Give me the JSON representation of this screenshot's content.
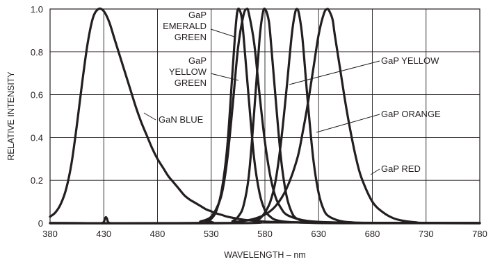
{
  "chart_data": {
    "type": "line",
    "title": "",
    "xlabel": "WAVELENGTH – nm",
    "ylabel": "RELATIVE INTENSITY",
    "xlim": [
      380,
      780
    ],
    "ylim": [
      0,
      1.0
    ],
    "x_ticks": [
      380,
      430,
      480,
      530,
      580,
      630,
      680,
      730,
      780
    ],
    "x_tick_labels": [
      "380",
      "430",
      "480",
      "530",
      "580",
      "630",
      "680",
      "730",
      "780"
    ],
    "y_ticks": [
      0,
      0.2,
      0.4,
      0.6,
      0.8,
      1.0
    ],
    "y_tick_labels": [
      "0",
      "0.2",
      "0.4",
      "0.6",
      "0.8",
      "1.0"
    ],
    "grid": true,
    "legend": "none",
    "series": [
      {
        "name": "GaN BLUE",
        "x": [
          380,
          385,
          390,
          395,
          400,
          405,
          410,
          415,
          420,
          425,
          430,
          435,
          440,
          445,
          450,
          455,
          460,
          465,
          470,
          475,
          480,
          485,
          490,
          495,
          500,
          505,
          510,
          515,
          520,
          525,
          530,
          535,
          540,
          545,
          550,
          555,
          560,
          570,
          580,
          600,
          650,
          700,
          780
        ],
        "y": [
          0.03,
          0.05,
          0.09,
          0.16,
          0.28,
          0.46,
          0.66,
          0.84,
          0.96,
          1.0,
          0.99,
          0.94,
          0.86,
          0.78,
          0.7,
          0.62,
          0.54,
          0.47,
          0.41,
          0.35,
          0.3,
          0.26,
          0.22,
          0.19,
          0.16,
          0.13,
          0.11,
          0.095,
          0.08,
          0.065,
          0.055,
          0.045,
          0.038,
          0.03,
          0.025,
          0.02,
          0.016,
          0.011,
          0.007,
          0.004,
          0.002,
          0.001,
          0.0
        ]
      },
      {
        "name": "GaP EMERALD GREEN",
        "x": [
          380,
          520,
          525,
          530,
          535,
          540,
          545,
          550,
          553,
          555,
          558,
          560,
          565,
          570,
          575,
          580,
          585,
          590,
          600,
          620,
          650,
          780
        ],
        "y": [
          0,
          0,
          0.01,
          0.02,
          0.06,
          0.16,
          0.36,
          0.72,
          0.93,
          1.0,
          0.97,
          0.88,
          0.58,
          0.3,
          0.14,
          0.06,
          0.03,
          0.015,
          0.006,
          0.002,
          0,
          0
        ]
      },
      {
        "name": "GaP YELLOW GREEN",
        "x": [
          380,
          510,
          520,
          525,
          530,
          535,
          540,
          545,
          550,
          555,
          560,
          563,
          565,
          570,
          575,
          580,
          585,
          590,
          595,
          600,
          610,
          620,
          640,
          680,
          780
        ],
        "y": [
          0,
          0,
          0.008,
          0.015,
          0.03,
          0.07,
          0.14,
          0.3,
          0.55,
          0.82,
          0.97,
          1.0,
          0.98,
          0.84,
          0.6,
          0.38,
          0.22,
          0.12,
          0.07,
          0.04,
          0.02,
          0.01,
          0.004,
          0.001,
          0
        ]
      },
      {
        "name": "GaP YELLOW",
        "x": [
          380,
          540,
          550,
          555,
          560,
          565,
          570,
          575,
          578,
          580,
          583,
          585,
          590,
          595,
          600,
          605,
          610,
          620,
          630,
          650,
          680,
          780
        ],
        "y": [
          0,
          0,
          0.01,
          0.03,
          0.08,
          0.22,
          0.52,
          0.86,
          0.98,
          1.0,
          0.96,
          0.88,
          0.58,
          0.3,
          0.13,
          0.05,
          0.02,
          0.006,
          0.002,
          0,
          0,
          0
        ]
      },
      {
        "name": "GaP ORANGE",
        "x": [
          380,
          560,
          570,
          575,
          580,
          585,
          590,
          595,
          600,
          605,
          608,
          610,
          612,
          615,
          620,
          625,
          630,
          635,
          640,
          650,
          660,
          680,
          780
        ],
        "y": [
          0,
          0,
          0.01,
          0.02,
          0.05,
          0.1,
          0.2,
          0.38,
          0.62,
          0.88,
          0.98,
          1.0,
          0.97,
          0.86,
          0.56,
          0.3,
          0.14,
          0.06,
          0.03,
          0.01,
          0.004,
          0.001,
          0
        ]
      },
      {
        "name": "GaP RED",
        "x": [
          380,
          540,
          550,
          560,
          570,
          580,
          590,
          600,
          610,
          615,
          620,
          625,
          630,
          635,
          638,
          640,
          643,
          645,
          650,
          655,
          660,
          665,
          670,
          680,
          690,
          700,
          710,
          720,
          730,
          780
        ],
        "y": [
          0,
          0,
          0.005,
          0.01,
          0.02,
          0.04,
          0.08,
          0.16,
          0.3,
          0.42,
          0.56,
          0.72,
          0.88,
          0.98,
          1.0,
          0.99,
          0.95,
          0.88,
          0.72,
          0.56,
          0.42,
          0.3,
          0.21,
          0.1,
          0.05,
          0.022,
          0.01,
          0.004,
          0.001,
          0
        ]
      },
      {
        "name": "",
        "x": [
          428,
          430,
          431,
          432,
          433,
          434,
          436
        ],
        "y": [
          0,
          0.005,
          0.02,
          0.028,
          0.02,
          0.005,
          0
        ]
      }
    ],
    "annotations": [
      {
        "lines": [
          "GaP",
          "EMERALD",
          "GREEN"
        ]
      },
      {
        "lines": [
          "GaP",
          "YELLOW",
          "GREEN"
        ]
      },
      {
        "lines": [
          "GaP YELLOW"
        ]
      },
      {
        "lines": [
          "GaN BLUE"
        ]
      },
      {
        "lines": [
          "GaP ORANGE"
        ]
      },
      {
        "lines": [
          "GaP RED"
        ]
      }
    ]
  }
}
